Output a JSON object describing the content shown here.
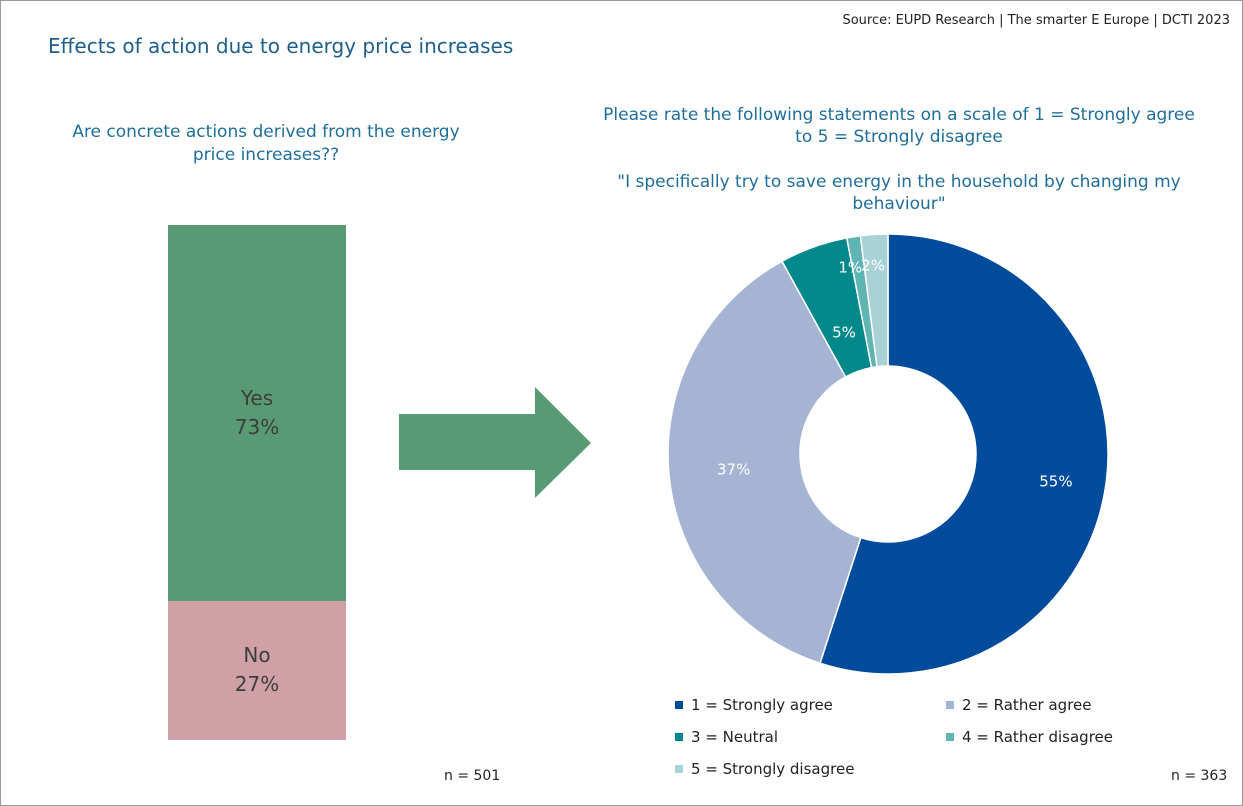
{
  "source": "Source: EUPD Research | The smarter E Europe | DCTI 2023",
  "title": "Effects of action due to energy price increases",
  "chart_data": [
    {
      "type": "bar",
      "stacked": true,
      "title": "Are concrete actions derived from the energy price increases??",
      "categories": [
        "Yes",
        "No"
      ],
      "values": [
        73,
        27
      ],
      "value_labels": [
        "73%",
        "27%"
      ],
      "colors": [
        "#589a74",
        "#cfa1a6"
      ],
      "n": "n = 501"
    },
    {
      "type": "pie",
      "donut": true,
      "title": "Please rate the following statements on a scale of 1 = Strongly agree to 5 = Strongly disagree",
      "subtitle": "\"I specifically try to save energy in the household by changing my behaviour\"",
      "categories": [
        "1 = Strongly agree",
        "2 = Rather agree",
        "3 = Neutral",
        "4 = Rather disagree",
        "5 = Strongly disagree"
      ],
      "values": [
        55,
        37,
        5,
        1,
        2
      ],
      "value_labels": [
        "55%",
        "37%",
        "5%",
        "1%",
        "2%"
      ],
      "colors": [
        "#004b9b",
        "#a5b4d3",
        "#00888a",
        "#5fb4b4",
        "#a9d2d6"
      ],
      "n": "n = 363"
    }
  ]
}
